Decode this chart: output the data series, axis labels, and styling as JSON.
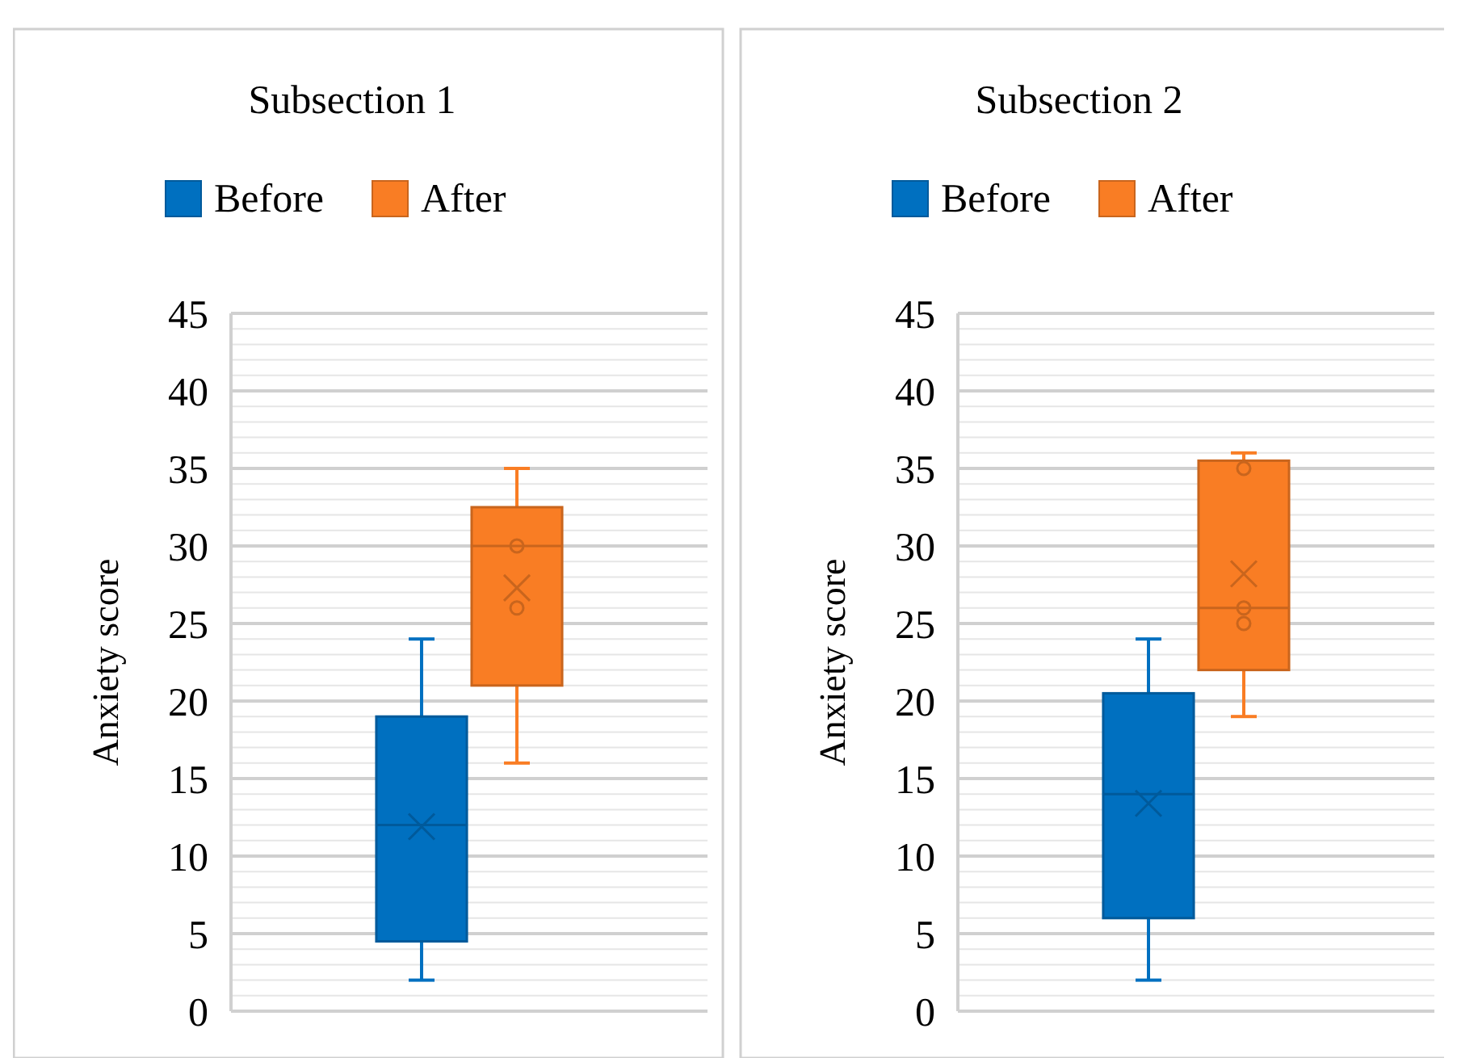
{
  "chart_data": [
    {
      "type": "box",
      "title": "Subsection 1",
      "ylabel": "Anxiety score",
      "categories": [
        null
      ],
      "legend": "top",
      "grid": "y",
      "ylim": [
        0,
        45
      ],
      "yticks": [
        0,
        {
          "value": 1,
          "label": null
        },
        {
          "value": 2,
          "label": null
        },
        {
          "value": 3,
          "label": null
        },
        {
          "value": 4,
          "label": null
        },
        5,
        {
          "value": 6,
          "label": null
        },
        {
          "value": 7,
          "label": null
        },
        {
          "value": 8,
          "label": null
        },
        {
          "value": 9,
          "label": null
        },
        10,
        {
          "value": 11,
          "label": null
        },
        {
          "value": 12,
          "label": null
        },
        {
          "value": 13,
          "label": null
        },
        {
          "value": 14,
          "label": null
        },
        15,
        {
          "value": 16,
          "label": null
        },
        {
          "value": 17,
          "label": null
        },
        {
          "value": 18,
          "label": null
        },
        {
          "value": 19,
          "label": null
        },
        20,
        {
          "value": 21,
          "label": null
        },
        {
          "value": 22,
          "label": null
        },
        {
          "value": 23,
          "label": null
        },
        {
          "value": 24,
          "label": null
        },
        25,
        {
          "value": 26,
          "label": null
        },
        {
          "value": 27,
          "label": null
        },
        {
          "value": 28,
          "label": null
        },
        {
          "value": 29,
          "label": null
        },
        30,
        {
          "value": 31,
          "label": null
        },
        {
          "value": 32,
          "label": null
        },
        {
          "value": 33,
          "label": null
        },
        {
          "value": 34,
          "label": null
        },
        35,
        {
          "value": 36,
          "label": null
        },
        {
          "value": 37,
          "label": null
        },
        {
          "value": 38,
          "label": null
        },
        {
          "value": 39,
          "label": null
        },
        40,
        {
          "value": 41,
          "label": null
        },
        {
          "value": 42,
          "label": null
        },
        {
          "value": 43,
          "label": null
        },
        {
          "value": 44,
          "label": null
        },
        45
      ],
      "series": [
        {
          "name": "Before",
          "color": "#0070c0",
          "boxes": [
            {
              "low": 2,
              "q1": 4.5,
              "median": 12,
              "q3": 19,
              "high": 24,
              "mean": 11.9
            }
          ]
        },
        {
          "name": "After",
          "color": "#f97d24",
          "boxes": [
            {
              "low": 16,
              "q1": 21,
              "median": 30,
              "q3": 32.5,
              "high": 35,
              "mean": 27.3,
              "outliers": [
                30,
                26
              ]
            }
          ]
        }
      ]
    },
    {
      "type": "box",
      "title": "Subsection 2",
      "ylabel": "Anxiety score",
      "categories": [
        null
      ],
      "legend": "top",
      "grid": "y",
      "ylim": [
        0,
        45
      ],
      "yticks": [
        0,
        {
          "value": 1,
          "label": null
        },
        {
          "value": 2,
          "label": null
        },
        {
          "value": 3,
          "label": null
        },
        {
          "value": 4,
          "label": null
        },
        5,
        {
          "value": 6,
          "label": null
        },
        {
          "value": 7,
          "label": null
        },
        {
          "value": 8,
          "label": null
        },
        {
          "value": 9,
          "label": null
        },
        10,
        {
          "value": 11,
          "label": null
        },
        {
          "value": 12,
          "label": null
        },
        {
          "value": 13,
          "label": null
        },
        {
          "value": 14,
          "label": null
        },
        15,
        {
          "value": 16,
          "label": null
        },
        {
          "value": 17,
          "label": null
        },
        {
          "value": 18,
          "label": null
        },
        {
          "value": 19,
          "label": null
        },
        20,
        {
          "value": 21,
          "label": null
        },
        {
          "value": 22,
          "label": null
        },
        {
          "value": 23,
          "label": null
        },
        {
          "value": 24,
          "label": null
        },
        25,
        {
          "value": 26,
          "label": null
        },
        {
          "value": 27,
          "label": null
        },
        {
          "value": 28,
          "label": null
        },
        {
          "value": 29,
          "label": null
        },
        30,
        {
          "value": 31,
          "label": null
        },
        {
          "value": 32,
          "label": null
        },
        {
          "value": 33,
          "label": null
        },
        {
          "value": 34,
          "label": null
        },
        35,
        {
          "value": 36,
          "label": null
        },
        {
          "value": 37,
          "label": null
        },
        {
          "value": 38,
          "label": null
        },
        {
          "value": 39,
          "label": null
        },
        40,
        {
          "value": 41,
          "label": null
        },
        {
          "value": 42,
          "label": null
        },
        {
          "value": 43,
          "label": null
        },
        {
          "value": 44,
          "label": null
        },
        45
      ],
      "series": [
        {
          "name": "Before",
          "color": "#0070c0",
          "boxes": [
            {
              "low": 2,
              "q1": 6,
              "median": 14,
              "q3": 20.5,
              "high": 24,
              "mean": 13.4
            }
          ]
        },
        {
          "name": "After",
          "color": "#f97d24",
          "boxes": [
            {
              "low": 19,
              "q1": 22,
              "median": 26,
              "q3": 35.5,
              "high": 36,
              "mean": 28.2,
              "outliers": [
                35,
                26,
                25
              ]
            }
          ]
        }
      ]
    }
  ]
}
